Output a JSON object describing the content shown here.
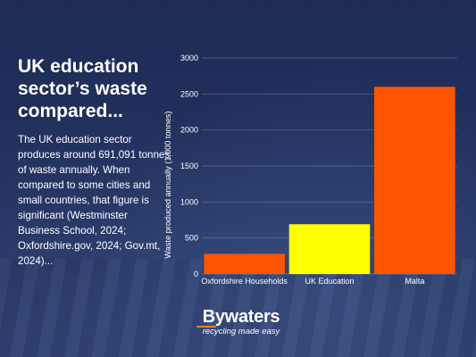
{
  "headline": "UK education sector’s waste compared...",
  "body": "The UK education sector produces around 691,091 tonnes of waste  annually. When compared to some cities and small countries, that figure is significant (Westminster Business School, 2024; Oxfordshire.gov, 2024; Gov.mt, 2024)...",
  "logo": {
    "word": "Bywaters",
    "tagline": "recycling made easy",
    "accent": "#f5821f"
  },
  "colors": {
    "orange": "#ff5500",
    "yellow": "#ffff00",
    "background": "#1d2b52"
  },
  "chart_data": {
    "type": "bar",
    "categories": [
      "Oxfordshire Households",
      "UK Education",
      "Malta"
    ],
    "values": [
      280,
      691,
      2600
    ],
    "bar_colors": [
      "#ff5500",
      "#ffff00",
      "#ff5500"
    ],
    "ylabel": "Waste produced annually  (1,000 tonnes)",
    "ylim": [
      0,
      3000
    ],
    "yticks": [
      0,
      500,
      1000,
      1500,
      2000,
      2500,
      3000
    ],
    "grid": true
  }
}
